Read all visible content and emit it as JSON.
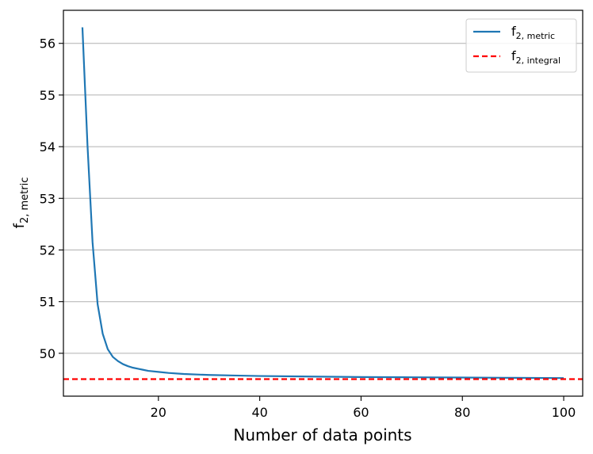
{
  "chart_data": {
    "type": "line",
    "xlabel": "Number of data points",
    "ylabel": {
      "base": "f",
      "sub": "2, metric"
    },
    "xlim": [
      1.25,
      103.75
    ],
    "ylim": [
      49.17,
      56.64
    ],
    "xticks": [
      {
        "value": 20,
        "label": "20"
      },
      {
        "value": 40,
        "label": "40"
      },
      {
        "value": 60,
        "label": "60"
      },
      {
        "value": 80,
        "label": "80"
      },
      {
        "value": 100,
        "label": "100"
      }
    ],
    "yticks": [
      {
        "value": 50,
        "label": "50"
      },
      {
        "value": 51,
        "label": "51"
      },
      {
        "value": 52,
        "label": "52"
      },
      {
        "value": 53,
        "label": "53"
      },
      {
        "value": 54,
        "label": "54"
      },
      {
        "value": 55,
        "label": "55"
      },
      {
        "value": 56,
        "label": "56"
      }
    ],
    "grid": "horizontal",
    "legend_position": "top-right",
    "series": [
      {
        "name": {
          "base": "f",
          "sub": "2, metric"
        },
        "style": "solid",
        "color": "#1f77b4",
        "x": [
          5,
          6,
          7,
          8,
          9,
          10,
          11,
          12,
          13,
          14,
          15,
          16,
          17,
          18,
          20,
          22,
          25,
          30,
          35,
          40,
          50,
          60,
          70,
          80,
          90,
          100
        ],
        "y": [
          56.31,
          54.03,
          52.15,
          50.95,
          50.38,
          50.08,
          49.93,
          49.85,
          49.79,
          49.75,
          49.72,
          49.7,
          49.68,
          49.66,
          49.64,
          49.62,
          49.6,
          49.58,
          49.57,
          49.56,
          49.55,
          49.54,
          49.535,
          49.53,
          49.525,
          49.52
        ]
      },
      {
        "name": {
          "base": "f",
          "sub": "2, integral"
        },
        "style": "dashed",
        "color": "#ff0000",
        "y_constant": 49.5
      }
    ]
  }
}
